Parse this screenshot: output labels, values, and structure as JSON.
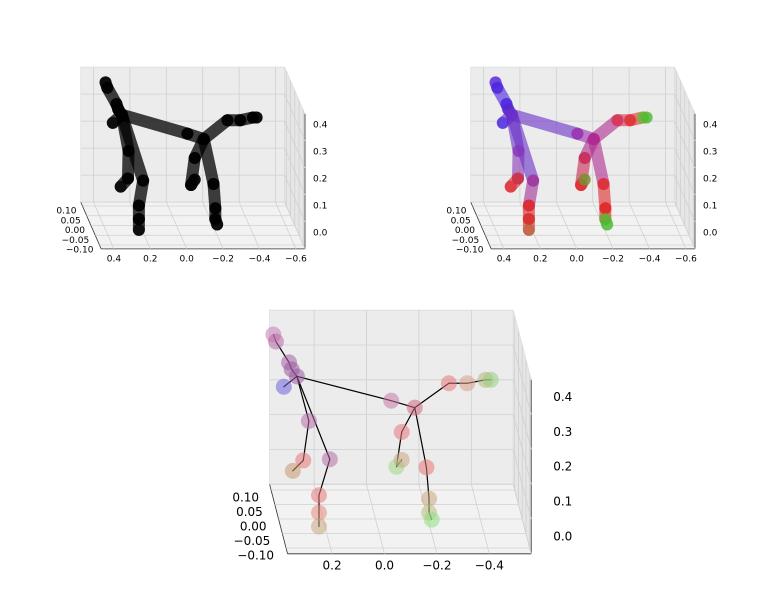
{
  "chart_data": [
    {
      "type": "scatter3d",
      "color": "#000000",
      "xlim": [
        0.47,
        -0.65
      ],
      "ylim": [
        -0.12,
        0.12
      ],
      "zlim": [
        0,
        0.5
      ],
      "xticks": [
        0.4,
        0.2,
        {
          "value": 0,
          "label": "0.0"
        },
        {
          "value": -0.2,
          "label": "−0.2"
        },
        {
          "value": -0.4,
          "label": "−0.4"
        },
        {
          "value": -0.6,
          "label": "−0.6"
        }
      ],
      "yticks": [
        {
          "value": 0.1,
          "label": "0.10"
        },
        0.05,
        {
          "value": 0,
          "label": "0.00"
        },
        {
          "value": -0.05,
          "label": "−0.05"
        },
        {
          "value": -0.1,
          "label": "−0.10"
        }
      ],
      "zticks": [
        {
          "value": 0,
          "label": "0.0"
        },
        0.1,
        0.2,
        0.3,
        0.4
      ],
      "x": [
        0.39,
        0.38,
        0.33,
        0.32,
        0.35,
        0.3,
        -0.06,
        -0.15,
        -0.28,
        -0.35,
        -0.42,
        -0.44,
        -0.1,
        -0.08,
        -0.1,
        0.24,
        0.16,
        0.29,
        0.33,
        0.23,
        0.23,
        0.23,
        -0.18,
        -0.19,
        -0.19,
        -0.2
      ],
      "y": [
        0,
        0,
        0,
        0,
        0,
        0,
        0,
        0,
        0,
        0,
        0,
        0,
        0,
        0,
        0,
        0.05,
        0.05,
        -0.05,
        -0.05,
        -0.05,
        -0.05,
        -0.05,
        -0.05,
        -0.05,
        -0.05,
        -0.05
      ],
      "z": [
        0.53,
        0.51,
        0.45,
        0.43,
        0.38,
        0.41,
        0.34,
        0.32,
        0.39,
        0.39,
        0.4,
        0.4,
        0.25,
        0.15,
        0.17,
        0.24,
        0.13,
        0.21,
        0.18,
        0.11,
        0.06,
        0.02,
        0.19,
        0.1,
        0.06,
        0.04
      ],
      "edges": [
        [
          0,
          1
        ],
        [
          1,
          2
        ],
        [
          2,
          3
        ],
        [
          3,
          5
        ],
        [
          5,
          4
        ],
        [
          5,
          6
        ],
        [
          6,
          7
        ],
        [
          7,
          8
        ],
        [
          8,
          9
        ],
        [
          9,
          10
        ],
        [
          10,
          11
        ],
        [
          5,
          15
        ],
        [
          15,
          17
        ],
        [
          17,
          18
        ],
        [
          5,
          16
        ],
        [
          16,
          19
        ],
        [
          19,
          20
        ],
        [
          20,
          21
        ],
        [
          7,
          12
        ],
        [
          12,
          13
        ],
        [
          13,
          14
        ],
        [
          7,
          22
        ],
        [
          22,
          23
        ],
        [
          23,
          24
        ],
        [
          24,
          25
        ]
      ]
    },
    {
      "type": "scatter3d",
      "xlim": [
        0.47,
        -0.65
      ],
      "ylim": [
        -0.12,
        0.12
      ],
      "zlim": [
        0,
        0.5
      ],
      "xticks": [
        0.4,
        0.2,
        {
          "value": 0,
          "label": "0.0"
        },
        {
          "value": -0.2,
          "label": "−0.2"
        },
        {
          "value": -0.4,
          "label": "−0.4"
        },
        {
          "value": -0.6,
          "label": "−0.6"
        }
      ],
      "yticks": [
        {
          "value": 0.1,
          "label": "0.10"
        },
        0.05,
        {
          "value": 0,
          "label": "0.00"
        },
        {
          "value": -0.05,
          "label": "−0.05"
        },
        {
          "value": -0.1,
          "label": "−0.10"
        }
      ],
      "zticks": [
        {
          "value": 0,
          "label": "0.0"
        },
        0.1,
        0.2,
        0.3,
        0.4
      ],
      "x": [
        0.39,
        0.38,
        0.33,
        0.32,
        0.35,
        0.3,
        -0.06,
        -0.15,
        -0.28,
        -0.35,
        -0.42,
        -0.44,
        -0.1,
        -0.08,
        -0.1,
        0.24,
        0.16,
        0.29,
        0.33,
        0.23,
        0.23,
        0.23,
        -0.18,
        -0.19,
        -0.19,
        -0.2
      ],
      "y": [
        0,
        0,
        0,
        0,
        0,
        0,
        0,
        0,
        0,
        0,
        0,
        0,
        0,
        0,
        0,
        0.05,
        0.05,
        -0.05,
        -0.05,
        -0.05,
        -0.05,
        -0.05,
        -0.05,
        -0.05,
        -0.05,
        -0.05
      ],
      "z": [
        0.53,
        0.51,
        0.45,
        0.43,
        0.38,
        0.41,
        0.34,
        0.32,
        0.39,
        0.39,
        0.4,
        0.4,
        0.25,
        0.15,
        0.17,
        0.24,
        0.13,
        0.21,
        0.18,
        0.11,
        0.06,
        0.02,
        0.19,
        0.1,
        0.06,
        0.04
      ],
      "colors": [
        "#5a2ad8",
        "#4a24e0",
        "#4a24e0",
        "#5a28d0",
        "#3a20e8",
        "#6a30c8",
        "#9a30b0",
        "#b02a90",
        "#d83050",
        "#e03030",
        "#70b838",
        "#40c030",
        "#c82850",
        "#e02828",
        "#50b830",
        "#8a3ab8",
        "#a03098",
        "#d02838",
        "#e02020",
        "#e02020",
        "#d82828",
        "#b06030",
        "#e02828",
        "#e02020",
        "#60b030",
        "#40c030"
      ],
      "edges": [
        [
          0,
          1
        ],
        [
          1,
          2
        ],
        [
          2,
          3
        ],
        [
          3,
          5
        ],
        [
          5,
          4
        ],
        [
          5,
          6
        ],
        [
          6,
          7
        ],
        [
          7,
          8
        ],
        [
          8,
          9
        ],
        [
          9,
          10
        ],
        [
          10,
          11
        ],
        [
          5,
          15
        ],
        [
          15,
          17
        ],
        [
          17,
          18
        ],
        [
          5,
          16
        ],
        [
          16,
          19
        ],
        [
          19,
          20
        ],
        [
          20,
          21
        ],
        [
          7,
          12
        ],
        [
          12,
          13
        ],
        [
          13,
          14
        ],
        [
          7,
          22
        ],
        [
          22,
          23
        ],
        [
          23,
          24
        ],
        [
          24,
          25
        ]
      ]
    },
    {
      "type": "scatter3d",
      "xlim": [
        0.37,
        -0.56
      ],
      "ylim": [
        -0.12,
        0.12
      ],
      "zlim": [
        0,
        0.5
      ],
      "xticks": [
        0.2,
        {
          "value": 0,
          "label": "0.0"
        },
        {
          "value": -0.2,
          "label": "−0.2"
        },
        {
          "value": -0.4,
          "label": "−0.4"
        }
      ],
      "yticks": [
        {
          "value": 0.1,
          "label": "0.10"
        },
        0.05,
        {
          "value": 0,
          "label": "0.00"
        },
        {
          "value": -0.05,
          "label": "−0.05"
        },
        {
          "value": -0.1,
          "label": "−0.10"
        }
      ],
      "zticks": [
        {
          "value": 0,
          "label": "0.0"
        },
        0.1,
        0.2,
        0.3,
        0.4
      ],
      "x": [
        0.39,
        0.38,
        0.33,
        0.32,
        0.35,
        0.3,
        -0.06,
        -0.15,
        -0.28,
        -0.35,
        -0.42,
        -0.44,
        -0.1,
        -0.08,
        -0.1,
        0.24,
        0.16,
        0.29,
        0.33,
        0.23,
        0.23,
        0.23,
        -0.18,
        -0.19,
        -0.19,
        -0.2
      ],
      "y": [
        0,
        0,
        0,
        0,
        0,
        0,
        0,
        0,
        0,
        0,
        0,
        0,
        0,
        0,
        0,
        0.05,
        0.05,
        -0.05,
        -0.05,
        -0.05,
        -0.05,
        -0.05,
        -0.05,
        -0.05,
        -0.05,
        -0.05
      ],
      "z": [
        0.53,
        0.51,
        0.45,
        0.43,
        0.38,
        0.41,
        0.34,
        0.32,
        0.39,
        0.39,
        0.4,
        0.4,
        0.25,
        0.15,
        0.17,
        0.24,
        0.13,
        0.21,
        0.18,
        0.11,
        0.06,
        0.02,
        0.19,
        0.1,
        0.06,
        0.04
      ],
      "colors": [
        "#c77bb5",
        "#b86aa8",
        "#a860a8",
        "#9a5aa0",
        "#6f63e0",
        "#9a5aa0",
        "#c87aa8",
        "#d06a80",
        "#e87878",
        "#d8a088",
        "#b8b880",
        "#98d080",
        "#e87878",
        "#a0d888",
        "#c8a880",
        "#b870a8",
        "#b870a8",
        "#e87878",
        "#c89870",
        "#e87878",
        "#e88a7a",
        "#c8a880",
        "#e87878",
        "#c8a880",
        "#b8c080",
        "#90e080"
      ],
      "edges": [
        [
          0,
          1
        ],
        [
          1,
          2
        ],
        [
          2,
          3
        ],
        [
          3,
          5
        ],
        [
          5,
          4
        ],
        [
          5,
          6
        ],
        [
          6,
          7
        ],
        [
          7,
          8
        ],
        [
          8,
          9
        ],
        [
          9,
          10
        ],
        [
          10,
          11
        ],
        [
          5,
          15
        ],
        [
          15,
          17
        ],
        [
          17,
          18
        ],
        [
          5,
          16
        ],
        [
          16,
          19
        ],
        [
          19,
          20
        ],
        [
          20,
          21
        ],
        [
          7,
          12
        ],
        [
          12,
          13
        ],
        [
          13,
          14
        ],
        [
          7,
          22
        ],
        [
          22,
          23
        ],
        [
          23,
          24
        ],
        [
          24,
          25
        ]
      ]
    }
  ]
}
